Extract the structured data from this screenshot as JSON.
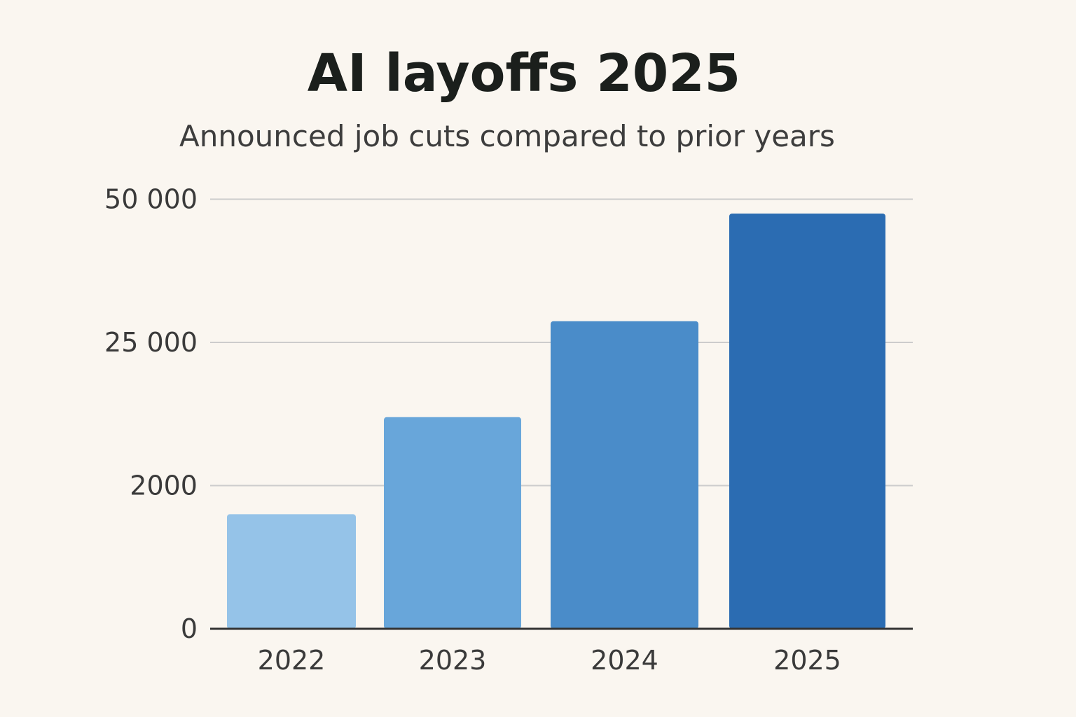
{
  "chart_data": {
    "type": "bar",
    "title": "AI layoffs 2025",
    "subtitle": "Announced job cuts compared to prior years",
    "xlabel": "",
    "ylabel": "",
    "categories": [
      "2022",
      "2023",
      "2024",
      "2025"
    ],
    "values": [
      1600,
      13000,
      28700,
      47500
    ],
    "y_tick_values": [
      0,
      2000,
      25000,
      50000
    ],
    "y_tick_labels": [
      "0",
      "2000",
      "25 000",
      "50 000"
    ],
    "y_scale": "evenly spaced printed ticks",
    "ylim": [
      0,
      50000
    ],
    "grid": true,
    "legend": "none",
    "colors": [
      "#95c3e8",
      "#68a6da",
      "#4a8cc9",
      "#2b6cb2"
    ],
    "background": "#faf6f0"
  }
}
